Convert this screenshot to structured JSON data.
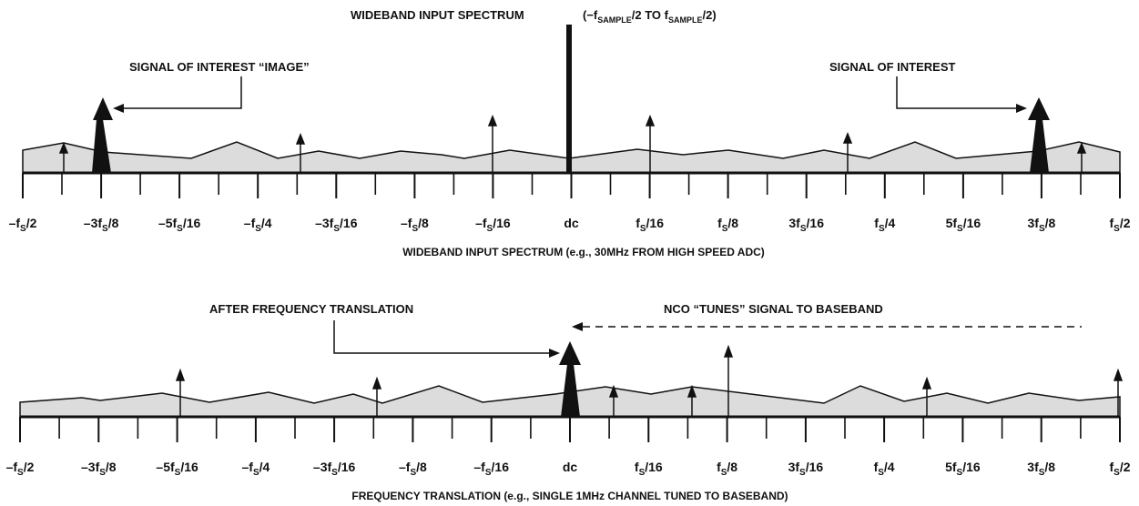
{
  "top_panel": {
    "title_prefix": "WIDEBAND INPUT SPECTRUM",
    "title_range_open": "(−f",
    "title_range_sub1": "SAMPLE",
    "title_range_mid": "/2 TO f",
    "title_range_sub2": "SAMPLE",
    "title_range_close": "/2)",
    "image_label": "SIGNAL OF INTEREST “IMAGE”",
    "signal_label": "SIGNAL OF INTEREST",
    "caption": "WIDEBAND INPUT SPECTRUM (e.g., 30MHz FROM HIGH SPEED ADC)"
  },
  "bottom_panel": {
    "translation_label": "AFTER FREQUENCY TRANSLATION",
    "nco_label": "NCO “TUNES” SIGNAL TO BASEBAND",
    "caption": "FREQUENCY TRANSLATION (e.g., SINGLE 1MHz CHANNEL TUNED TO BASEBAND)"
  },
  "axis_ticks": [
    {
      "pre": "–f",
      "sub": "S",
      "post": "/2"
    },
    {
      "pre": "–3f",
      "sub": "S",
      "post": "/8"
    },
    {
      "pre": "–5f",
      "sub": "S",
      "post": "/16"
    },
    {
      "pre": "–f",
      "sub": "S",
      "post": "/4"
    },
    {
      "pre": "–3f",
      "sub": "S",
      "post": "/16"
    },
    {
      "pre": "–f",
      "sub": "S",
      "post": "/8"
    },
    {
      "pre": "–f",
      "sub": "S",
      "post": "/16"
    },
    {
      "pre": "dc",
      "sub": "",
      "post": ""
    },
    {
      "pre": "f",
      "sub": "S",
      "post": "/16"
    },
    {
      "pre": "f",
      "sub": "S",
      "post": "/8"
    },
    {
      "pre": "3f",
      "sub": "S",
      "post": "/16"
    },
    {
      "pre": "f",
      "sub": "S",
      "post": "/4"
    },
    {
      "pre": "5f",
      "sub": "S",
      "post": "/16"
    },
    {
      "pre": "3f",
      "sub": "S",
      "post": "/8"
    },
    {
      "pre": "f",
      "sub": "S",
      "post": "/2"
    }
  ],
  "colors": {
    "line": "#111111",
    "fill": "#dcdcdc",
    "text": "#111111"
  }
}
